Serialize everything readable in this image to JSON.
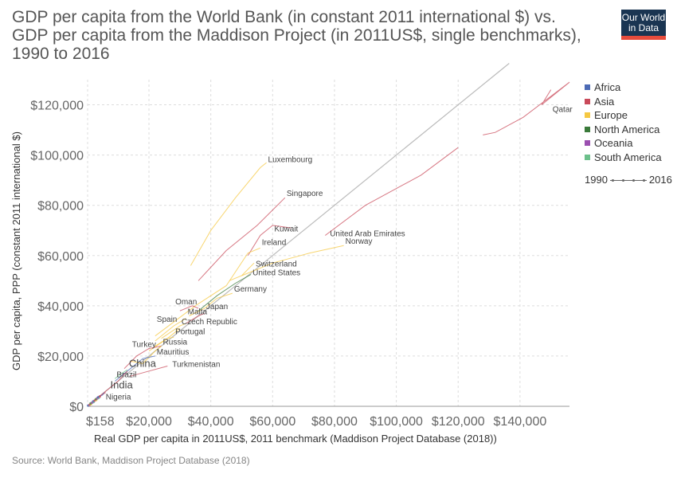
{
  "header": {
    "title_lines": [
      "GDP per capita from the World Bank (in constant 2011 international $) vs.",
      "GDP per capita from the Maddison Project (in 2011US$, single benchmarks),",
      "1990 to 2016"
    ],
    "logo_lines": [
      "Our World",
      "in Data"
    ],
    "logo_color": "#1a3552",
    "logo_accent": "#e74c3c"
  },
  "source": "Source: World Bank, Maddison Project Database (2018)",
  "legend": {
    "items": [
      {
        "label": "Africa",
        "color": "#4c6ab5"
      },
      {
        "label": "Asia",
        "color": "#c94a5a"
      },
      {
        "label": "Europe",
        "color": "#f5c842"
      },
      {
        "label": "North America",
        "color": "#3a7a3a"
      },
      {
        "label": "Oceania",
        "color": "#9b4fb0"
      },
      {
        "label": "South America",
        "color": "#6cc08b"
      }
    ],
    "timeline_start": "1990",
    "timeline_end": "2016"
  },
  "chart_data": {
    "type": "scatter",
    "xlabel": "Real GDP per capita in 2011US$, 2011 benchmark (Maddison Project Database (2018))",
    "ylabel": "GDP per capita, PPP (constant 2011 international $)",
    "xlim": [
      158,
      156000
    ],
    "ylim": [
      0,
      130000
    ],
    "x_ticks": [
      {
        "value": 158,
        "label": "$158"
      },
      {
        "value": 20000,
        "label": "$20,000"
      },
      {
        "value": 40000,
        "label": "$40,000"
      },
      {
        "value": 60000,
        "label": "$60,000"
      },
      {
        "value": 80000,
        "label": "$80,000"
      },
      {
        "value": 100000,
        "label": "$100,000"
      },
      {
        "value": 120000,
        "label": "$120,000"
      },
      {
        "value": 140000,
        "label": "$140,000"
      }
    ],
    "y_ticks": [
      {
        "value": 0,
        "label": "$0"
      },
      {
        "value": 20000,
        "label": "$20,000"
      },
      {
        "value": 40000,
        "label": "$40,000"
      },
      {
        "value": 60000,
        "label": "$60,000"
      },
      {
        "value": 80000,
        "label": "$80,000"
      },
      {
        "value": 100000,
        "label": "$100,000"
      },
      {
        "value": 120000,
        "label": "$120,000"
      }
    ],
    "grid": true,
    "diagonal_reference": true,
    "series": [
      {
        "name": "Qatar",
        "region": "Asia",
        "points": [
          [
            150000,
            126000
          ],
          [
            147000,
            120000
          ],
          [
            156000,
            129000
          ],
          [
            141000,
            115000
          ],
          [
            132000,
            109000
          ],
          [
            128000,
            108000
          ]
        ],
        "label_at": [
          150000,
          116500
        ]
      },
      {
        "name": "Luxembourg",
        "region": "Europe",
        "points": [
          [
            33500,
            56000
          ],
          [
            40000,
            70000
          ],
          [
            48000,
            83000
          ],
          [
            56000,
            95000
          ],
          [
            58000,
            97000
          ]
        ],
        "label_at": [
          58000,
          96500
        ]
      },
      {
        "name": "Singapore",
        "region": "Asia",
        "points": [
          [
            36000,
            50000
          ],
          [
            45000,
            62000
          ],
          [
            55000,
            72000
          ],
          [
            64000,
            83000
          ]
        ],
        "label_at": [
          64000,
          83000
        ]
      },
      {
        "name": "Kuwait",
        "region": "Asia",
        "points": [
          [
            52000,
            60000
          ],
          [
            56000,
            68000
          ],
          [
            60000,
            72000
          ],
          [
            66000,
            71000
          ]
        ],
        "label_at": [
          60000,
          69000
        ]
      },
      {
        "name": "United Arab Emirates",
        "region": "Asia",
        "points": [
          [
            120000,
            103000
          ],
          [
            108000,
            92000
          ],
          [
            90000,
            80000
          ],
          [
            77000,
            68000
          ]
        ],
        "label_at": [
          78000,
          67000
        ]
      },
      {
        "name": "Ireland",
        "region": "Europe",
        "points": [
          [
            22000,
            28000
          ],
          [
            35000,
            40000
          ],
          [
            45000,
            48000
          ],
          [
            52000,
            61000
          ],
          [
            56000,
            63000
          ]
        ],
        "label_at": [
          56000,
          63500
        ]
      },
      {
        "name": "Norway",
        "region": "Europe",
        "points": [
          [
            50000,
            52000
          ],
          [
            60000,
            57000
          ],
          [
            72000,
            61000
          ],
          [
            83000,
            64000
          ]
        ],
        "label_at": [
          83000,
          64000
        ]
      },
      {
        "name": "Switzerland",
        "region": "Europe",
        "points": [
          [
            46000,
            50000
          ],
          [
            50000,
            52000
          ],
          [
            54000,
            57000
          ]
        ],
        "label_at": [
          54000,
          55000
        ]
      },
      {
        "name": "United States",
        "region": "North America",
        "points": [
          [
            36000,
            38000
          ],
          [
            42000,
            44000
          ],
          [
            48000,
            49000
          ],
          [
            53000,
            52500
          ]
        ],
        "label_at": [
          53000,
          51500
        ]
      },
      {
        "name": "Germany",
        "region": "Europe",
        "points": [
          [
            33000,
            36000
          ],
          [
            38000,
            39000
          ],
          [
            42000,
            43000
          ],
          [
            47000,
            45000
          ]
        ],
        "label_at": [
          47000,
          45000
        ]
      },
      {
        "name": "Oman",
        "region": "Asia",
        "points": [
          [
            30000,
            38000
          ],
          [
            34000,
            40000
          ],
          [
            36000,
            39000
          ]
        ],
        "label_at": [
          28000,
          40000
        ]
      },
      {
        "name": "Japan",
        "region": "Asia",
        "points": [
          [
            32000,
            33000
          ],
          [
            36000,
            36000
          ],
          [
            38000,
            37000
          ]
        ],
        "label_at": [
          38000,
          38000
        ]
      },
      {
        "name": "Malta",
        "region": "Europe",
        "points": [
          [
            22000,
            26000
          ],
          [
            28000,
            32000
          ],
          [
            32000,
            35000
          ]
        ],
        "label_at": [
          32000,
          36000
        ]
      },
      {
        "name": "Spain",
        "region": "Europe",
        "points": [
          [
            24000,
            27000
          ],
          [
            30000,
            32000
          ],
          [
            32000,
            33000
          ]
        ],
        "label_at": [
          22000,
          33000
        ]
      },
      {
        "name": "Czech Republic",
        "region": "Europe",
        "points": [
          [
            20000,
            22000
          ],
          [
            26000,
            27000
          ],
          [
            30000,
            31000
          ]
        ],
        "label_at": [
          30000,
          32000
        ]
      },
      {
        "name": "Portugal",
        "region": "Europe",
        "points": [
          [
            22000,
            24000
          ],
          [
            26000,
            27000
          ],
          [
            28000,
            27500
          ]
        ],
        "label_at": [
          28000,
          28000
        ]
      },
      {
        "name": "Turkey",
        "region": "Asia",
        "points": [
          [
            12000,
            15000
          ],
          [
            16000,
            20000
          ],
          [
            20000,
            23000
          ],
          [
            24000,
            24000
          ]
        ],
        "label_at": [
          14000,
          23000
        ]
      },
      {
        "name": "Russia",
        "region": "Europe",
        "points": [
          [
            14000,
            18000
          ],
          [
            18000,
            17000
          ],
          [
            22000,
            22000
          ],
          [
            24000,
            24000
          ]
        ],
        "label_at": [
          24000,
          24000
        ]
      },
      {
        "name": "Mauritius",
        "region": "Africa",
        "points": [
          [
            9000,
            10000
          ],
          [
            14000,
            15000
          ],
          [
            18000,
            19000
          ],
          [
            22000,
            20000
          ]
        ],
        "label_at": [
          22000,
          20000
        ]
      },
      {
        "name": "Turkmenistan",
        "region": "Asia",
        "points": [
          [
            14000,
            12000
          ],
          [
            20000,
            14000
          ],
          [
            26000,
            16000
          ]
        ],
        "label_at": [
          27000,
          15000
        ]
      },
      {
        "name": "China",
        "region": "Asia",
        "points": [
          [
            1500,
            1500
          ],
          [
            5000,
            5000
          ],
          [
            10000,
            10000
          ],
          [
            13000,
            14000
          ]
        ],
        "label_at": [
          13000,
          15000
        ]
      },
      {
        "name": "Brazil",
        "region": "South America",
        "points": [
          [
            9000,
            11000
          ],
          [
            11000,
            13000
          ],
          [
            13000,
            14500
          ]
        ],
        "label_at": [
          9000,
          11000
        ]
      },
      {
        "name": "India",
        "region": "Asia",
        "points": [
          [
            1500,
            1500
          ],
          [
            3500,
            3500
          ],
          [
            6000,
            5500
          ]
        ],
        "label_at": [
          7000,
          6500
        ]
      },
      {
        "name": "Nigeria",
        "region": "Africa",
        "points": [
          [
            3000,
            3500
          ],
          [
            5000,
            4500
          ],
          [
            5500,
            5500
          ]
        ],
        "label_at": [
          5500,
          2000
        ]
      }
    ]
  }
}
